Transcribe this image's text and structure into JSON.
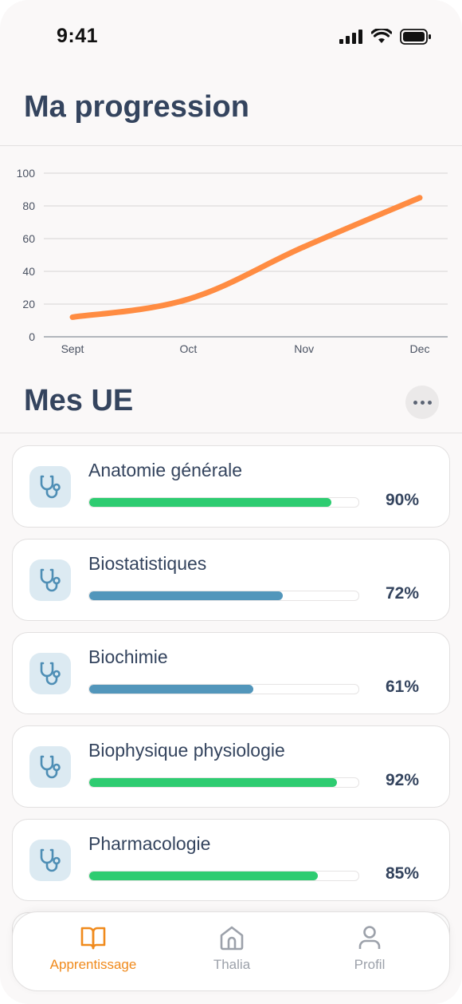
{
  "status_bar": {
    "time": "9:41",
    "icons": [
      "signal-icon",
      "wifi-icon",
      "battery-icon"
    ]
  },
  "progress_section": {
    "title": "Ma progression"
  },
  "chart_data": {
    "type": "line",
    "title": "",
    "xlabel": "",
    "ylabel": "",
    "categories": [
      "Sept",
      "Oct",
      "Nov",
      "Dec"
    ],
    "series": [
      {
        "values": [
          12,
          23,
          55,
          85
        ]
      }
    ],
    "ylim": [
      0,
      100
    ],
    "yticks": [
      "0",
      "20",
      "40",
      "60",
      "80",
      "100"
    ],
    "grid": true,
    "line_color": "#ff8c42"
  },
  "ue_section": {
    "title": "Mes UE",
    "more_icon": "more-horizontal-icon"
  },
  "ue_items": [
    {
      "name": "Anatomie générale",
      "percent_label": "90%",
      "progress": 0.9,
      "color": "#2ecc71",
      "icon": "stethoscope-icon"
    },
    {
      "name": "Biostatistiques",
      "percent_label": "72%",
      "progress": 0.72,
      "color": "#5296bb",
      "icon": "stethoscope-icon"
    },
    {
      "name": "Biochimie",
      "percent_label": "61%",
      "progress": 0.61,
      "color": "#5296bb",
      "icon": "stethoscope-icon"
    },
    {
      "name": "Biophysique physiologie",
      "percent_label": "92%",
      "progress": 0.92,
      "color": "#2ecc71",
      "icon": "stethoscope-icon"
    },
    {
      "name": "Pharmacologie",
      "percent_label": "85%",
      "progress": 0.85,
      "color": "#2ecc71",
      "icon": "stethoscope-icon"
    }
  ],
  "bottom_nav": {
    "items": [
      {
        "label": "Apprentissage",
        "icon": "book-open-icon",
        "active": true
      },
      {
        "label": "Thalia",
        "icon": "home-icon",
        "active": false
      },
      {
        "label": "Profil",
        "icon": "user-icon",
        "active": false
      }
    ],
    "active_color": "#f08a1c",
    "inactive_color": "#9ca1aa"
  }
}
